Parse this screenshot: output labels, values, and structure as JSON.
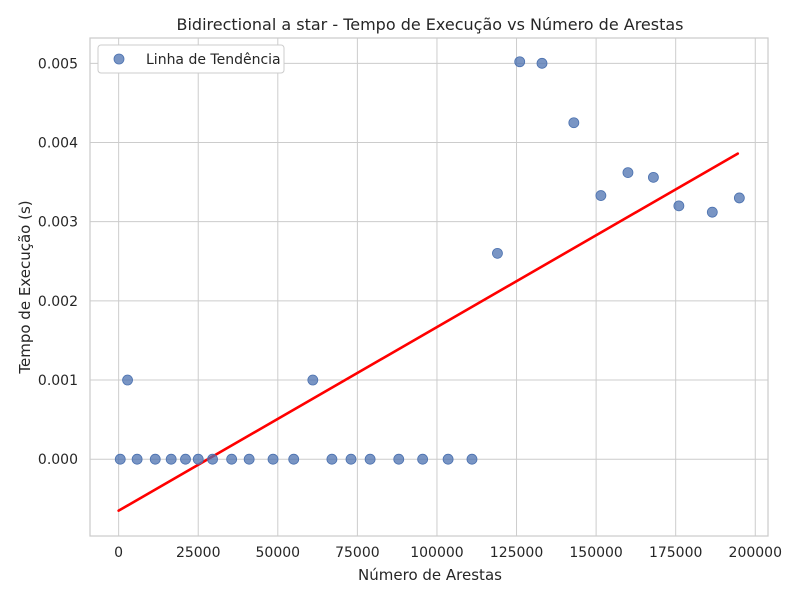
{
  "chart_data": {
    "type": "scatter",
    "title": "Bidirectional a star - Tempo de Execução vs Número de Arestas",
    "xlabel": "Número de Arestas",
    "ylabel": "Tempo de Execução (s)",
    "xlim": [
      -9000,
      204000
    ],
    "ylim": [
      -0.00097,
      0.00532
    ],
    "xticks": [
      0,
      25000,
      50000,
      75000,
      100000,
      125000,
      150000,
      175000,
      200000
    ],
    "xtick_labels": [
      "0",
      "25000",
      "50000",
      "75000",
      "100000",
      "125000",
      "150000",
      "175000",
      "200000"
    ],
    "yticks": [
      0.0,
      0.001,
      0.002,
      0.003,
      0.004,
      0.005
    ],
    "ytick_labels": [
      "0.000",
      "0.001",
      "0.002",
      "0.003",
      "0.004",
      "0.005"
    ],
    "grid": true,
    "legend_placement": "top-left",
    "legend": [
      "Linha de Tendência"
    ],
    "point_color": "#4c72b0",
    "line_color": "#ff0000",
    "series": [
      {
        "type": "scatter",
        "x": [
          500,
          2800,
          5800,
          11500,
          16500,
          21000,
          25000,
          29500,
          35500,
          41000,
          48500,
          55000,
          61000,
          67000,
          73000,
          79000,
          88000,
          95500,
          103500,
          111000,
          119000,
          126000,
          133000,
          143000,
          151500,
          160000,
          168000,
          176000,
          186500,
          195000
        ],
        "y": [
          0.0,
          0.001,
          0.0,
          0.0,
          0.0,
          0.0,
          0.0,
          0.0,
          0.0,
          0.0,
          0.0,
          0.0,
          0.001,
          0.0,
          0.0,
          0.0,
          0.0,
          0.0,
          0.0,
          0.0,
          0.0026,
          0.00502,
          0.005,
          0.00425,
          0.00333,
          0.00362,
          0.00356,
          0.0032,
          0.00312,
          0.0033
        ]
      },
      {
        "type": "line",
        "x": [
          0,
          194500
        ],
        "y": [
          -0.00065,
          0.00386
        ]
      }
    ]
  }
}
